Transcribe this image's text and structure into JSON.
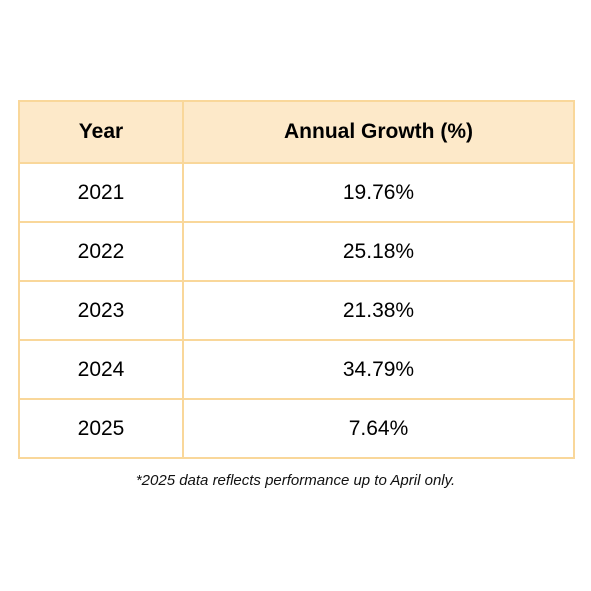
{
  "chart_data": {
    "type": "table",
    "columns": [
      "Year",
      "Annual Growth (%)"
    ],
    "rows": [
      {
        "year": "2021",
        "growth": "19.76%"
      },
      {
        "year": "2022",
        "growth": "25.18%"
      },
      {
        "year": "2023",
        "growth": "21.38%"
      },
      {
        "year": "2024",
        "growth": "34.79%"
      },
      {
        "year": "2025",
        "growth": "7.64%"
      }
    ],
    "values": [
      19.76,
      25.18,
      21.38,
      34.79,
      7.64
    ],
    "footnote": "*2025 data reflects performance up to April only."
  },
  "colors": {
    "header_background": "#fde9c9",
    "border": "#f9d79a"
  }
}
